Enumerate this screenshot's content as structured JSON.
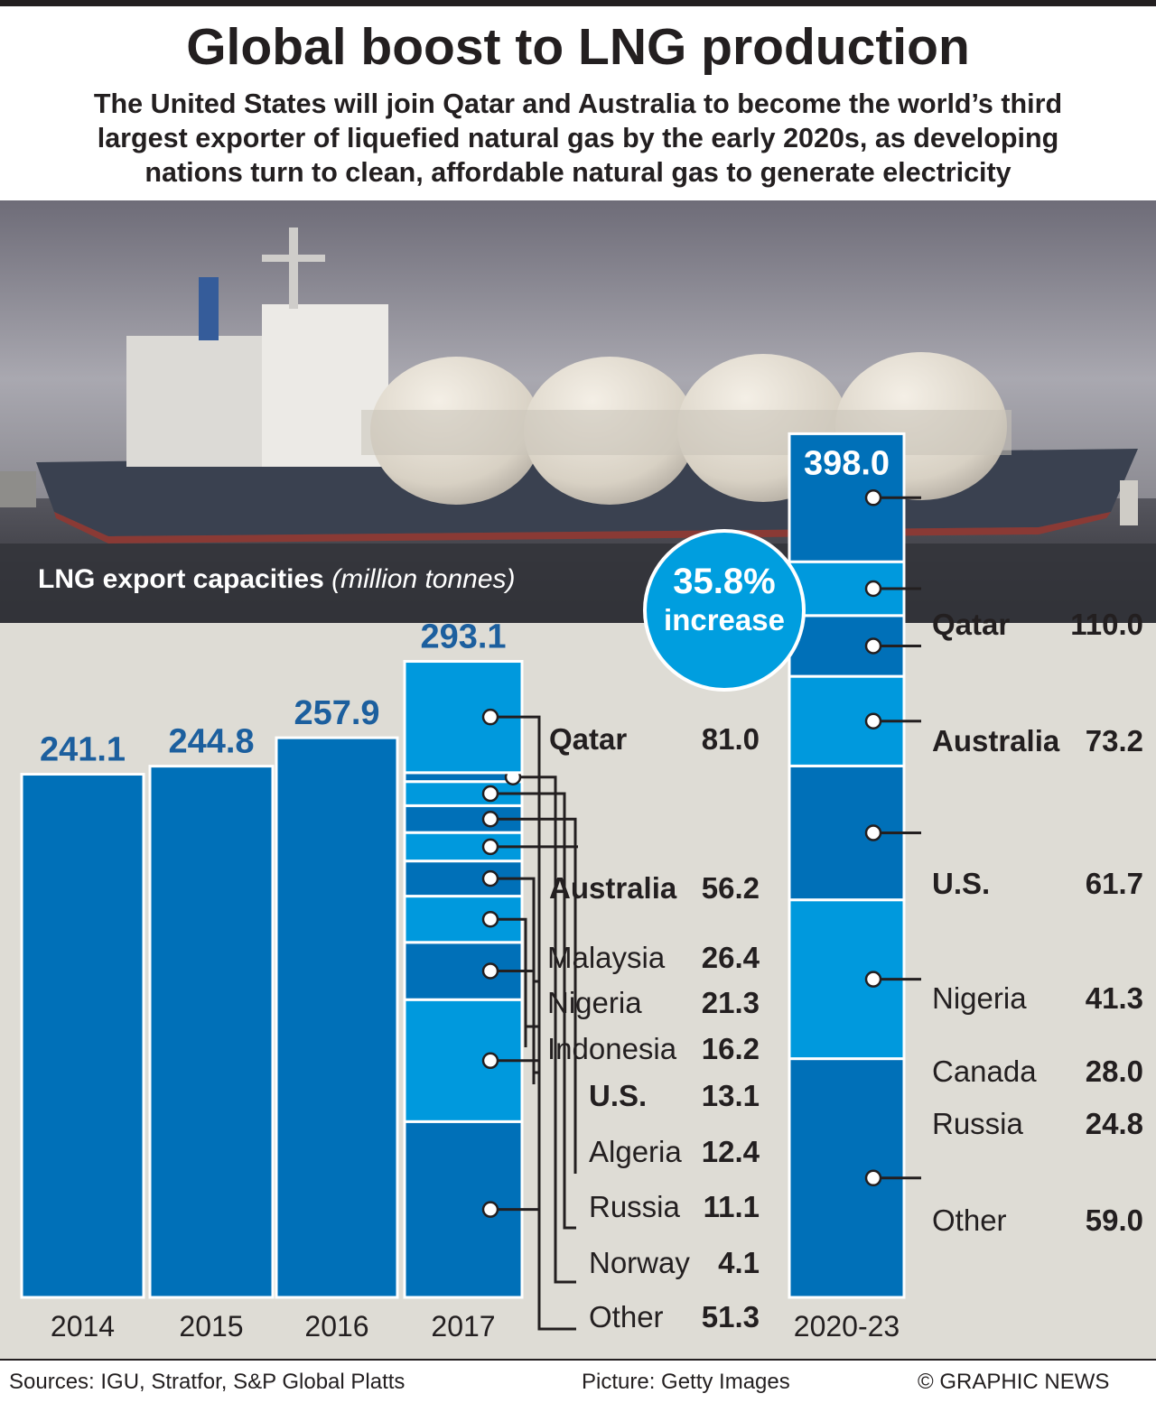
{
  "header": {
    "title": "Global boost to LNG production",
    "subtitle_lines": [
      "The United States will join Qatar and Australia to become the world’s third",
      "largest exporter of liquefied natural gas by the early 2020s, as developing",
      "nations turn to clean, affordable natural gas to generate electricity"
    ]
  },
  "chart_title": {
    "main": "LNG export capacities",
    "unit": "(million tonnes)"
  },
  "increase_badge": {
    "value": "35.8%",
    "label": "increase"
  },
  "colors": {
    "dark_blue": "#0070b8",
    "light_blue": "#0099dd",
    "value_text": "#1c5f9e",
    "background": "#dedcd5",
    "text": "#231f20"
  },
  "chart_data": {
    "type": "bar",
    "categories": [
      "2014",
      "2015",
      "2016",
      "2017",
      "2020-23"
    ],
    "totals": [
      241.1,
      244.8,
      257.9,
      293.1,
      398.0
    ],
    "total_labels": [
      "241.1",
      "244.8",
      "257.9",
      "293.1",
      "398.0"
    ],
    "ylim": [
      0,
      420
    ],
    "stacks": {
      "2017": [
        {
          "name": "Qatar",
          "value": 81.0,
          "label": "81.0",
          "bold": true
        },
        {
          "name": "Australia",
          "value": 56.2,
          "label": "56.2",
          "bold": true
        },
        {
          "name": "Malaysia",
          "value": 26.4,
          "label": "26.4",
          "bold": false
        },
        {
          "name": "Nigeria",
          "value": 21.3,
          "label": "21.3",
          "bold": false
        },
        {
          "name": "Indonesia",
          "value": 16.2,
          "label": "16.2",
          "bold": false
        },
        {
          "name": "U.S.",
          "value": 13.1,
          "label": "13.1",
          "bold": true
        },
        {
          "name": "Algeria",
          "value": 12.4,
          "label": "12.4",
          "bold": false
        },
        {
          "name": "Russia",
          "value": 11.1,
          "label": "11.1",
          "bold": false
        },
        {
          "name": "Norway",
          "value": 4.1,
          "label": "4.1",
          "bold": false
        },
        {
          "name": "Other",
          "value": 51.3,
          "label": "51.3",
          "bold": false
        }
      ],
      "2020-23": [
        {
          "name": "Qatar",
          "value": 110.0,
          "label": "110.0",
          "bold": true
        },
        {
          "name": "Australia",
          "value": 73.2,
          "label": "73.2",
          "bold": true
        },
        {
          "name": "U.S.",
          "value": 61.7,
          "label": "61.7",
          "bold": true
        },
        {
          "name": "Nigeria",
          "value": 41.3,
          "label": "41.3",
          "bold": false
        },
        {
          "name": "Canada",
          "value": 28.0,
          "label": "28.0",
          "bold": false
        },
        {
          "name": "Russia",
          "value": 24.8,
          "label": "24.8",
          "bold": false
        },
        {
          "name": "Other",
          "value": 59.0,
          "label": "59.0",
          "bold": false
        }
      ]
    }
  },
  "footer": {
    "sources": "Sources: IGU, Stratfor, S&P Global Platts",
    "picture": "Picture: Getty Images",
    "copyright": "© GRAPHIC NEWS"
  }
}
